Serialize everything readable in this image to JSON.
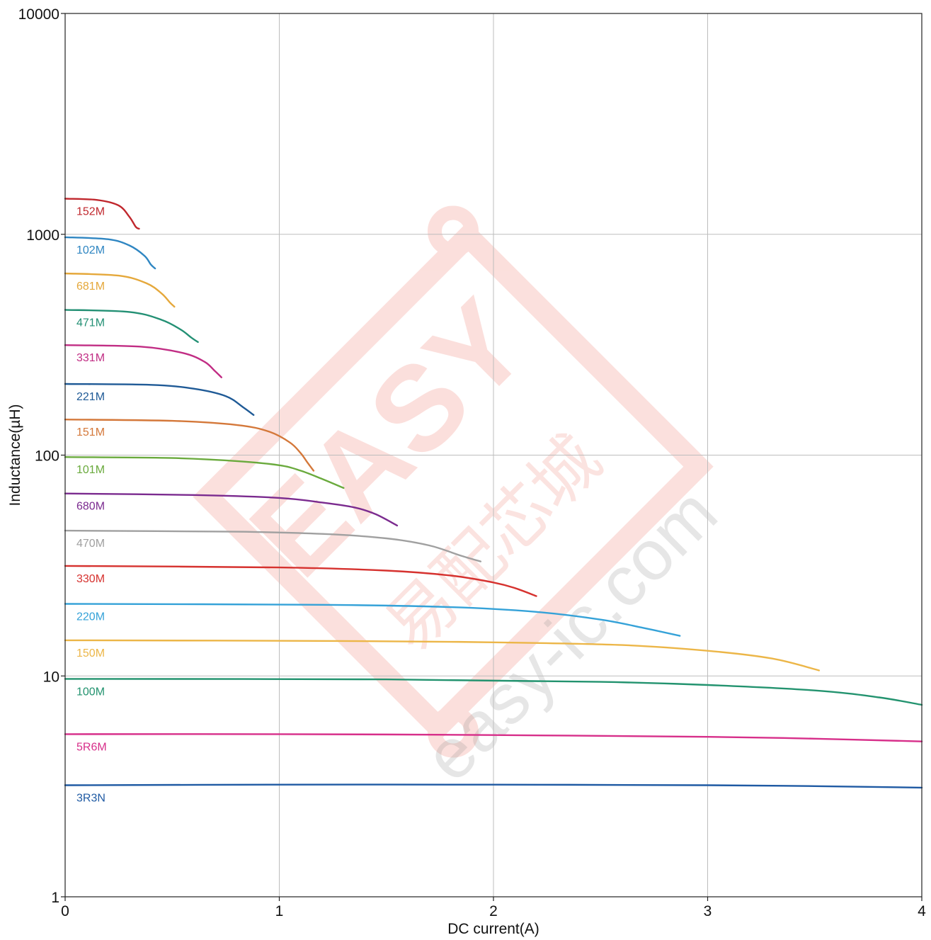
{
  "chart_data": {
    "type": "line",
    "title": "",
    "xlabel": "DC current(A)",
    "ylabel": "Inductance(µH)",
    "xlim": [
      0,
      4
    ],
    "ylim": [
      1,
      10000
    ],
    "yscale": "log",
    "grid": true,
    "x_ticks": [
      "0",
      "1",
      "2",
      "3",
      "4"
    ],
    "y_ticks": [
      "1",
      "10",
      "100",
      "1000",
      "10000"
    ],
    "series": [
      {
        "name": "152M",
        "color": "#c0272d",
        "x": [
          0,
          0.15,
          0.25,
          0.3,
          0.33,
          0.345
        ],
        "y": [
          1450,
          1430,
          1350,
          1200,
          1080,
          1060
        ]
      },
      {
        "name": "102M",
        "color": "#2f86c2",
        "x": [
          0,
          0.2,
          0.3,
          0.37,
          0.4,
          0.42
        ],
        "y": [
          970,
          950,
          890,
          800,
          730,
          700
        ]
      },
      {
        "name": "681M",
        "color": "#e5a83b",
        "x": [
          0,
          0.25,
          0.38,
          0.45,
          0.49,
          0.51
        ],
        "y": [
          665,
          650,
          600,
          540,
          490,
          470
        ]
      },
      {
        "name": "471M",
        "color": "#239074",
        "x": [
          0,
          0.3,
          0.45,
          0.54,
          0.59,
          0.62
        ],
        "y": [
          455,
          445,
          410,
          370,
          340,
          325
        ]
      },
      {
        "name": "331M",
        "color": "#c12d84",
        "x": [
          0,
          0.35,
          0.55,
          0.65,
          0.7,
          0.73
        ],
        "y": [
          315,
          310,
          290,
          265,
          240,
          225
        ]
      },
      {
        "name": "221M",
        "color": "#1f5a96",
        "x": [
          0,
          0.4,
          0.6,
          0.75,
          0.83,
          0.88
        ],
        "y": [
          210,
          208,
          200,
          185,
          165,
          152
        ]
      },
      {
        "name": "151M",
        "color": "#d4783a",
        "x": [
          0,
          0.5,
          0.8,
          0.95,
          1.05,
          1.1,
          1.13,
          1.16
        ],
        "y": [
          145,
          143,
          137,
          128,
          114,
          102,
          93,
          85
        ]
      },
      {
        "name": "101M",
        "color": "#6aaa3d",
        "x": [
          0,
          0.5,
          0.8,
          1.0,
          1.1,
          1.2,
          1.3
        ],
        "y": [
          98,
          97,
          94,
          90,
          85,
          78,
          71
        ]
      },
      {
        "name": "680M",
        "color": "#7b2b8f",
        "x": [
          0,
          0.6,
          1.0,
          1.2,
          1.35,
          1.45,
          1.55
        ],
        "y": [
          67,
          66,
          64,
          61,
          58,
          54,
          48
        ]
      },
      {
        "name": "470M",
        "color": "#a0a0a0",
        "x": [
          0,
          0.8,
          1.2,
          1.5,
          1.7,
          1.85,
          1.94
        ],
        "y": [
          45.5,
          45,
          44,
          42,
          39,
          35,
          33
        ]
      },
      {
        "name": "330M",
        "color": "#d6322f",
        "x": [
          0,
          1.0,
          1.5,
          1.8,
          2.0,
          2.1,
          2.2
        ],
        "y": [
          31.5,
          31,
          30,
          28.5,
          26.5,
          25,
          23
        ]
      },
      {
        "name": "220M",
        "color": "#35a2d8",
        "x": [
          0,
          1.2,
          1.8,
          2.2,
          2.5,
          2.7,
          2.87
        ],
        "y": [
          21.2,
          21,
          20.5,
          19.5,
          18,
          16.5,
          15.2
        ]
      },
      {
        "name": "150M",
        "color": "#ecb648",
        "x": [
          0,
          1.3,
          2.0,
          2.6,
          3.0,
          3.3,
          3.52
        ],
        "y": [
          14.5,
          14.4,
          14.2,
          13.8,
          13.0,
          12.0,
          10.6
        ]
      },
      {
        "name": "100M",
        "color": "#23936f",
        "x": [
          0,
          1.5,
          2.5,
          3.0,
          3.5,
          3.8,
          4.0
        ],
        "y": [
          9.7,
          9.65,
          9.4,
          9.1,
          8.6,
          8.0,
          7.4
        ]
      },
      {
        "name": "5R6M",
        "color": "#d72f8a",
        "x": [
          0,
          1.0,
          2.0,
          3.0,
          3.5,
          4.0
        ],
        "y": [
          5.45,
          5.45,
          5.4,
          5.3,
          5.2,
          5.05
        ]
      },
      {
        "name": "3R3N",
        "color": "#1f5aa3",
        "x": [
          0,
          1.0,
          2.0,
          3.0,
          3.5,
          4.0
        ],
        "y": [
          3.2,
          3.22,
          3.22,
          3.2,
          3.17,
          3.12
        ]
      }
    ]
  },
  "watermark": {
    "brand": "EASY",
    "chinese": "易配芯城",
    "url": "easy-ic.com",
    "color": "#e8402a"
  }
}
